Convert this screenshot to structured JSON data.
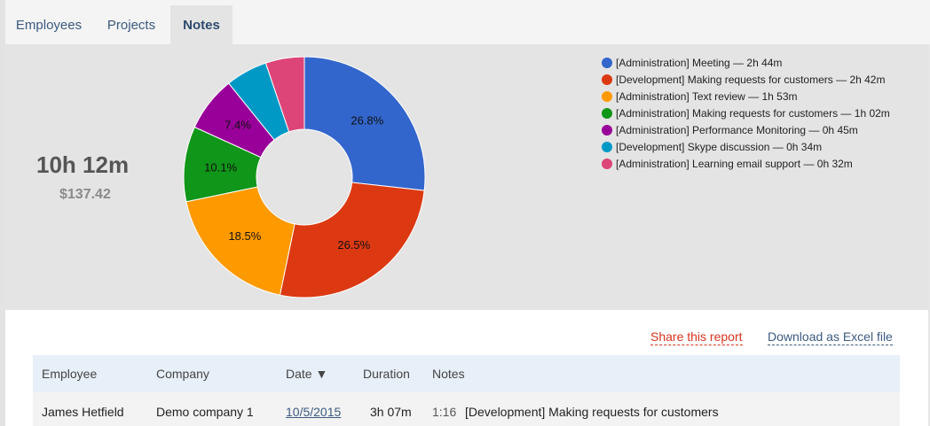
{
  "tabs": [
    {
      "label": "Employees"
    },
    {
      "label": "Projects"
    },
    {
      "label": "Notes",
      "active": true
    }
  ],
  "summary": {
    "total_time": "10h 12m",
    "total_cost": "$137.42"
  },
  "chart_data": {
    "type": "pie",
    "donut": true,
    "slices": [
      {
        "label": "[Administration] Meeting — 2h 44m",
        "value": 26.8,
        "display": "26.8%",
        "color": "#3366cc"
      },
      {
        "label": "[Development] Making requests for customers — 2h 42m",
        "value": 26.5,
        "display": "26.5%",
        "color": "#dc3912"
      },
      {
        "label": "[Administration] Text review — 1h 53m",
        "value": 18.5,
        "display": "18.5%",
        "color": "#ff9900"
      },
      {
        "label": "[Administration] Making requests for customers — 1h 02m",
        "value": 10.1,
        "display": "10.1%",
        "color": "#109618"
      },
      {
        "label": "[Administration] Performance Monitoring — 0h 45m",
        "value": 7.4,
        "display": "7.4%",
        "color": "#990099"
      },
      {
        "label": "[Development] Skype discussion — 0h 34m",
        "value": 5.6,
        "display": "",
        "color": "#0099c6"
      },
      {
        "label": "[Administration] Learning email support — 0h 32m",
        "value": 5.2,
        "display": "",
        "color": "#dd4477"
      }
    ],
    "legend_position": "right"
  },
  "actions": {
    "share": "Share this report",
    "excel": "Download as Excel file"
  },
  "table": {
    "columns": [
      "Employee",
      "Company",
      "Date ▼",
      "Duration",
      "Notes"
    ],
    "rows": [
      {
        "employee": "James Hetfield",
        "company": "Demo company 1",
        "date": "10/5/2015",
        "duration": "3h 07m",
        "note_time": "1:16",
        "note_text": "[Development] Making requests for customers"
      }
    ]
  }
}
